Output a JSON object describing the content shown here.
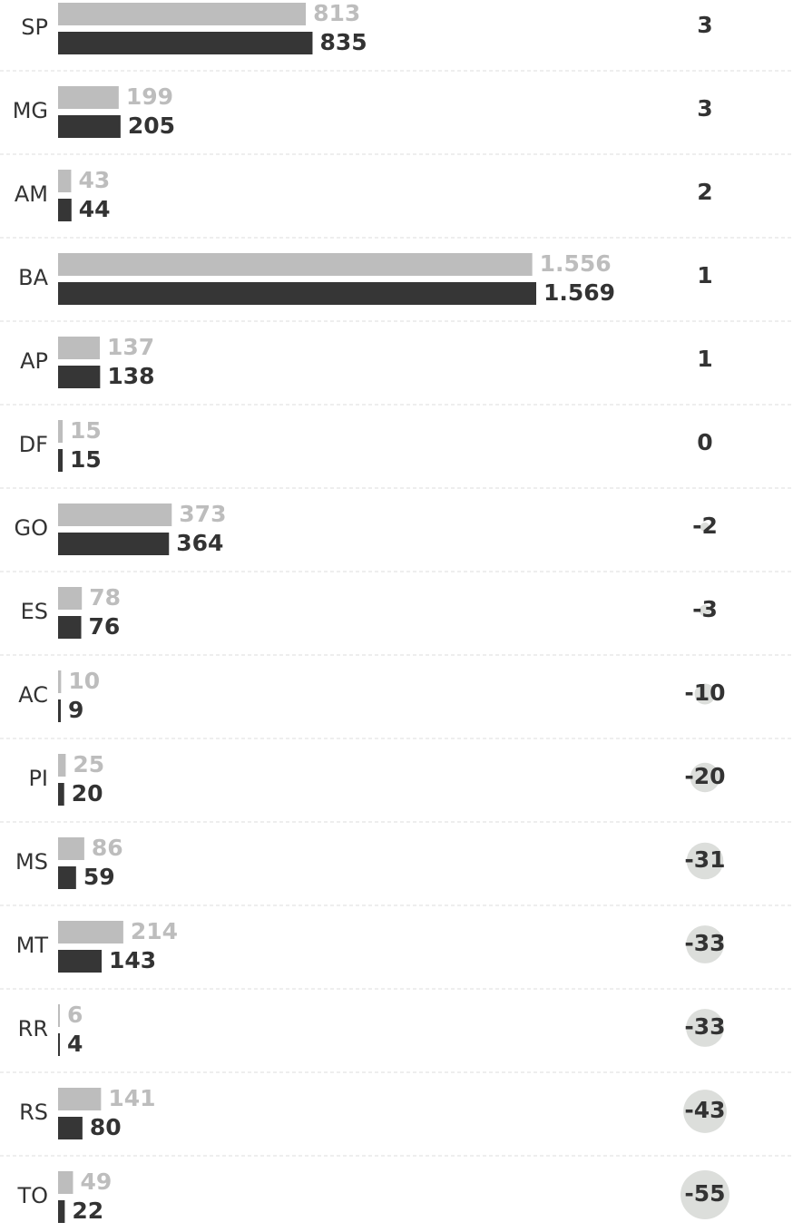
{
  "chart_data": {
    "type": "bar",
    "categories": [
      "SP",
      "MG",
      "AM",
      "BA",
      "AP",
      "DF",
      "GO",
      "ES",
      "AC",
      "PI",
      "MS",
      "MT",
      "RR",
      "RS",
      "TO"
    ],
    "series": [
      {
        "color": "#bdbdbd",
        "values": [
          813,
          199,
          43,
          1556,
          137,
          15,
          373,
          78,
          10,
          25,
          86,
          214,
          6,
          141,
          49
        ],
        "value_labels": [
          "813",
          "199",
          "43",
          "1.556",
          "137",
          "15",
          "373",
          "78",
          "10",
          "25",
          "86",
          "214",
          "6",
          "141",
          "49"
        ]
      },
      {
        "color": "#363636",
        "values": [
          835,
          205,
          44,
          1569,
          138,
          15,
          364,
          76,
          9,
          20,
          59,
          143,
          4,
          80,
          22
        ],
        "value_labels": [
          "835",
          "205",
          "44",
          "1.569",
          "138",
          "15",
          "364",
          "76",
          "9",
          "20",
          "59",
          "143",
          "4",
          "80",
          "22"
        ]
      }
    ],
    "changes": {
      "color": "#dcdedb",
      "values": [
        3,
        3,
        2,
        1,
        1,
        0,
        -2,
        -3,
        -10,
        -20,
        -31,
        -33,
        -33,
        -43,
        -55
      ]
    }
  }
}
